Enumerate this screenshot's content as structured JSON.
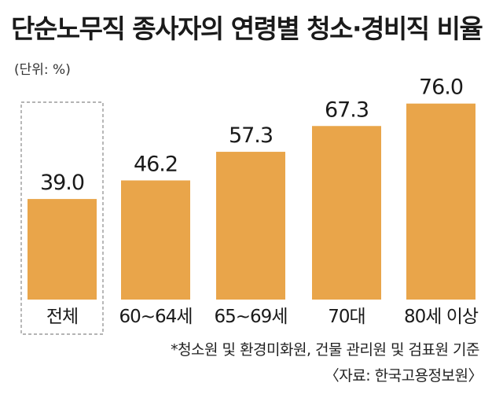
{
  "header": {
    "title": "단순노무직 종사자의 연령별 청소·경비직 비율",
    "unit": "(단위: %)"
  },
  "footer": {
    "note": "*청소원 및 환경미화원, 건물 관리원 및 검표원 기준",
    "source": "〈자료: 한국고용정보원〉"
  },
  "colors": {
    "bar": "#E9A54A",
    "highlight_border": "#888888"
  },
  "chart_data": {
    "type": "bar",
    "title": "단순노무직 종사자의 연령별 청소·경비직 비율",
    "unit": "(단위: %)",
    "categories": [
      "전체",
      "60~64세",
      "65~69세",
      "70대",
      "80세 이상"
    ],
    "values": [
      39.0,
      46.2,
      57.3,
      67.3,
      76.0
    ],
    "value_labels": [
      "39.0",
      "46.2",
      "57.3",
      "67.3",
      "76.0"
    ],
    "highlighted_category": "전체",
    "ylim": [
      0,
      100
    ],
    "grid": false,
    "legend": "none"
  }
}
